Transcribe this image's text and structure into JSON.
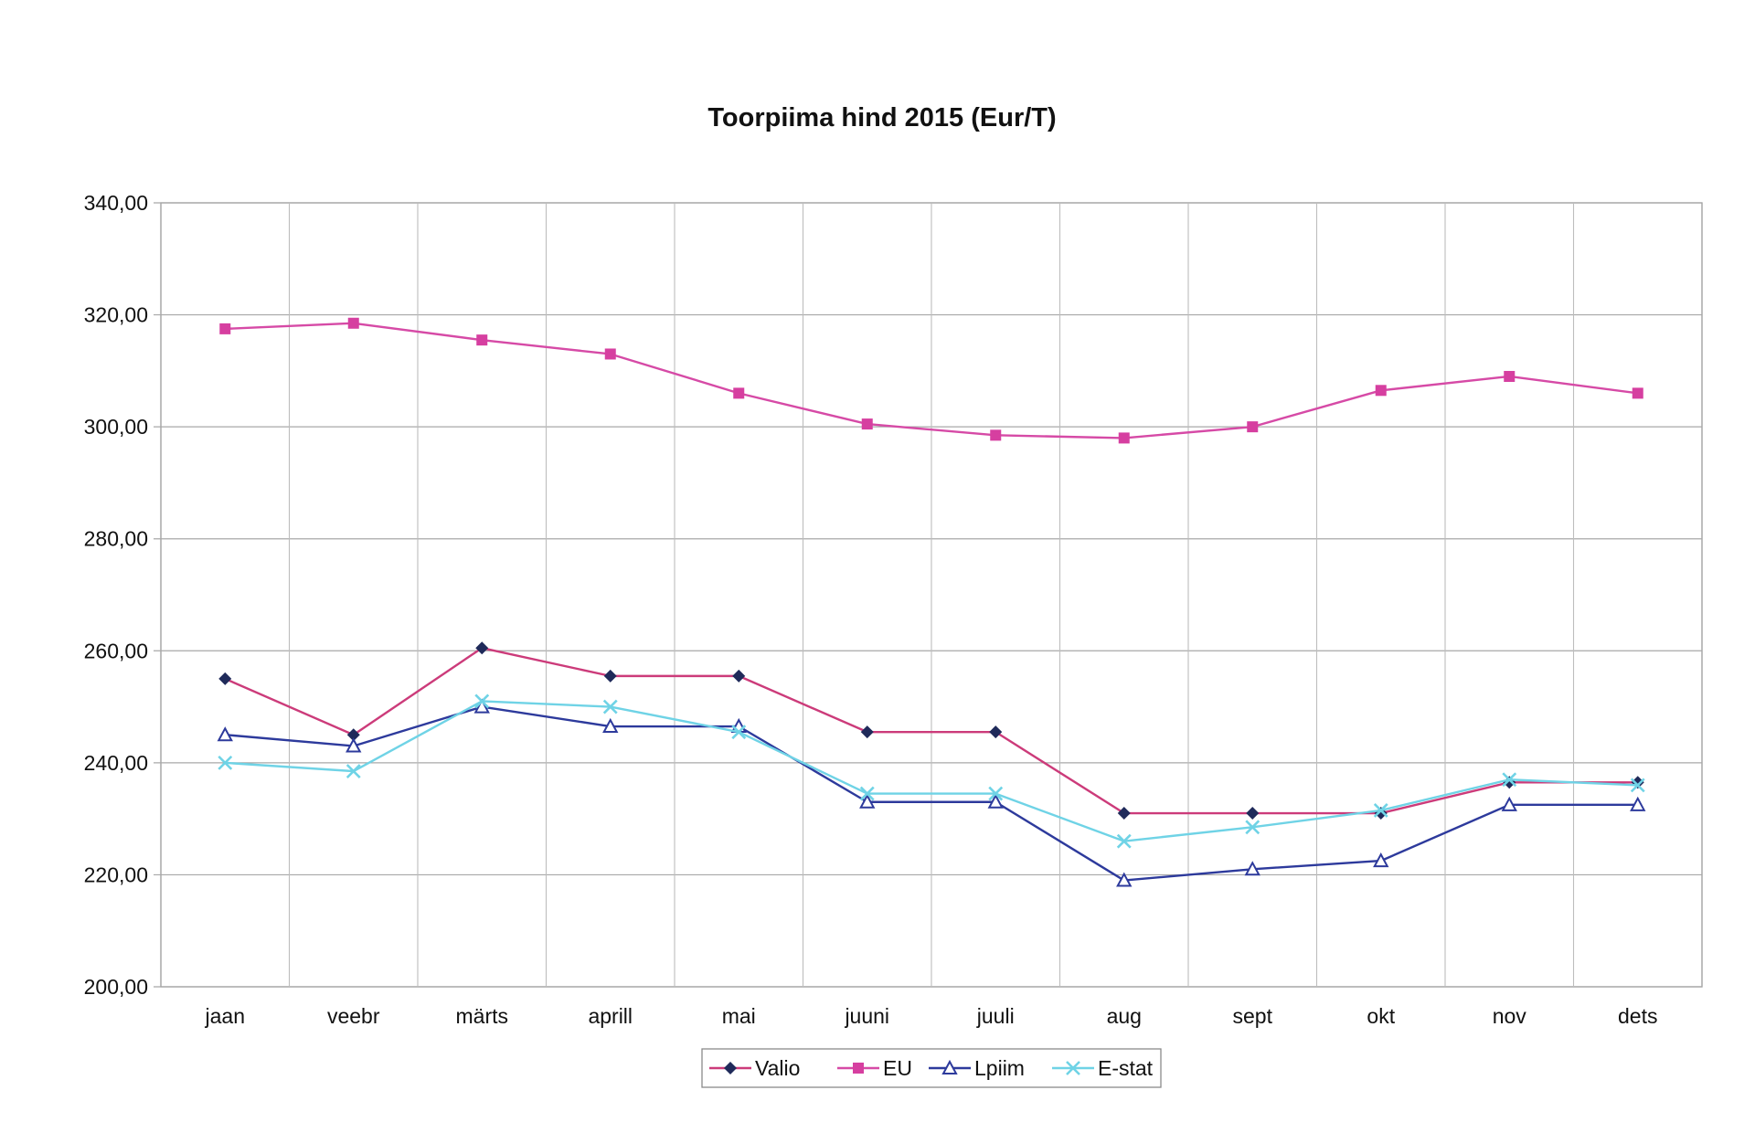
{
  "chart_data": {
    "type": "line",
    "title": "Toorpiima hind 2015 (Eur/T)",
    "xlabel": "",
    "ylabel": "",
    "ylim": [
      200,
      340
    ],
    "y_step": 20,
    "y_tick_labels": [
      "200,00",
      "220,00",
      "240,00",
      "260,00",
      "280,00",
      "300,00",
      "320,00",
      "340,00"
    ],
    "categories": [
      "jaan",
      "veebr",
      "märts",
      "aprill",
      "mai",
      "juuni",
      "juuli",
      "aug",
      "sept",
      "okt",
      "nov",
      "dets"
    ],
    "grid": true,
    "legend_position": "bottom-center",
    "series": [
      {
        "name": "Valio",
        "color": "#cc3b7a",
        "marker": "diamond",
        "marker_color": "#1f2a5a",
        "values": [
          255,
          245,
          260.5,
          255.5,
          255.5,
          245.5,
          245.5,
          231,
          231,
          231,
          236.5,
          236.5
        ]
      },
      {
        "name": "EU",
        "color": "#d64aa6",
        "marker": "square",
        "marker_color": "#d63fa0",
        "values": [
          317.5,
          318.5,
          315.5,
          313,
          306,
          300.5,
          298.5,
          298,
          300,
          306.5,
          309,
          306
        ]
      },
      {
        "name": "Lpiim",
        "color": "#2d3a9c",
        "marker": "triangle",
        "marker_color": "#2d3a9c",
        "values": [
          245,
          243,
          250,
          246.5,
          246.5,
          233,
          233,
          219,
          221,
          222.5,
          232.5,
          232.5
        ]
      },
      {
        "name": "E-stat",
        "color": "#6fd3e6",
        "marker": "x",
        "marker_color": "#6fd3e6",
        "values": [
          240,
          238.5,
          251,
          250,
          245.5,
          234.5,
          234.5,
          226,
          228.5,
          231.5,
          237,
          236
        ]
      }
    ]
  }
}
